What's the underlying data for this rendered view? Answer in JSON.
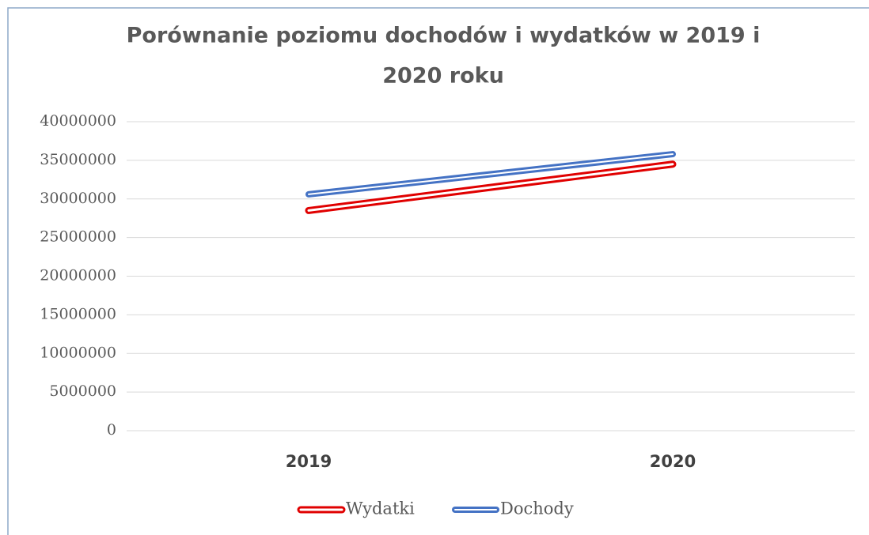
{
  "chart_data": {
    "type": "line",
    "title_lines": [
      "Porównanie poziomu dochodów i wydatków w 2019 i",
      "2020 roku"
    ],
    "categories": [
      "2019",
      "2020"
    ],
    "series": [
      {
        "name": "Wydatki",
        "color": "#e00000",
        "values": [
          28500000,
          34500000
        ]
      },
      {
        "name": "Dochody",
        "color": "#4472c4",
        "values": [
          30600000,
          35800000
        ]
      }
    ],
    "ylim": [
      0,
      40000000
    ],
    "yticks": [
      0,
      5000000,
      10000000,
      15000000,
      20000000,
      25000000,
      30000000,
      35000000,
      40000000
    ],
    "grid": true,
    "legend": "bottom"
  }
}
